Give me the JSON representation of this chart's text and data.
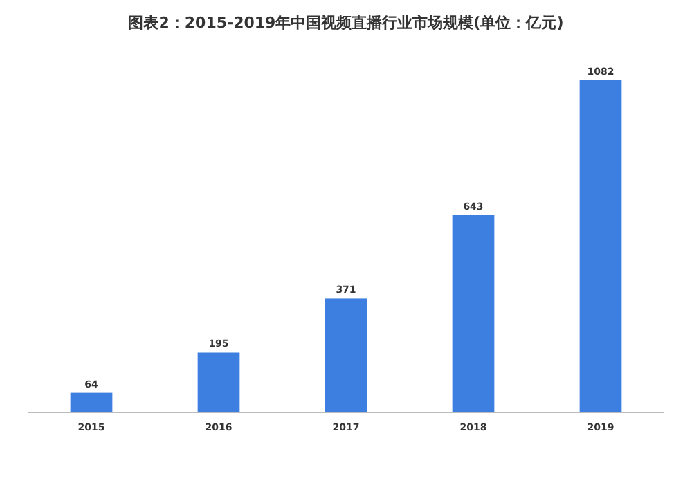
{
  "chart_data": {
    "type": "bar",
    "title": "图表2：2015-2019年中国视频直播行业市场规模(单位：亿元)",
    "categories": [
      "2015",
      "2016",
      "2017",
      "2018",
      "2019"
    ],
    "values": [
      64,
      195,
      371,
      643,
      1082
    ],
    "color": "#3d7fe0",
    "data_labels": true
  }
}
